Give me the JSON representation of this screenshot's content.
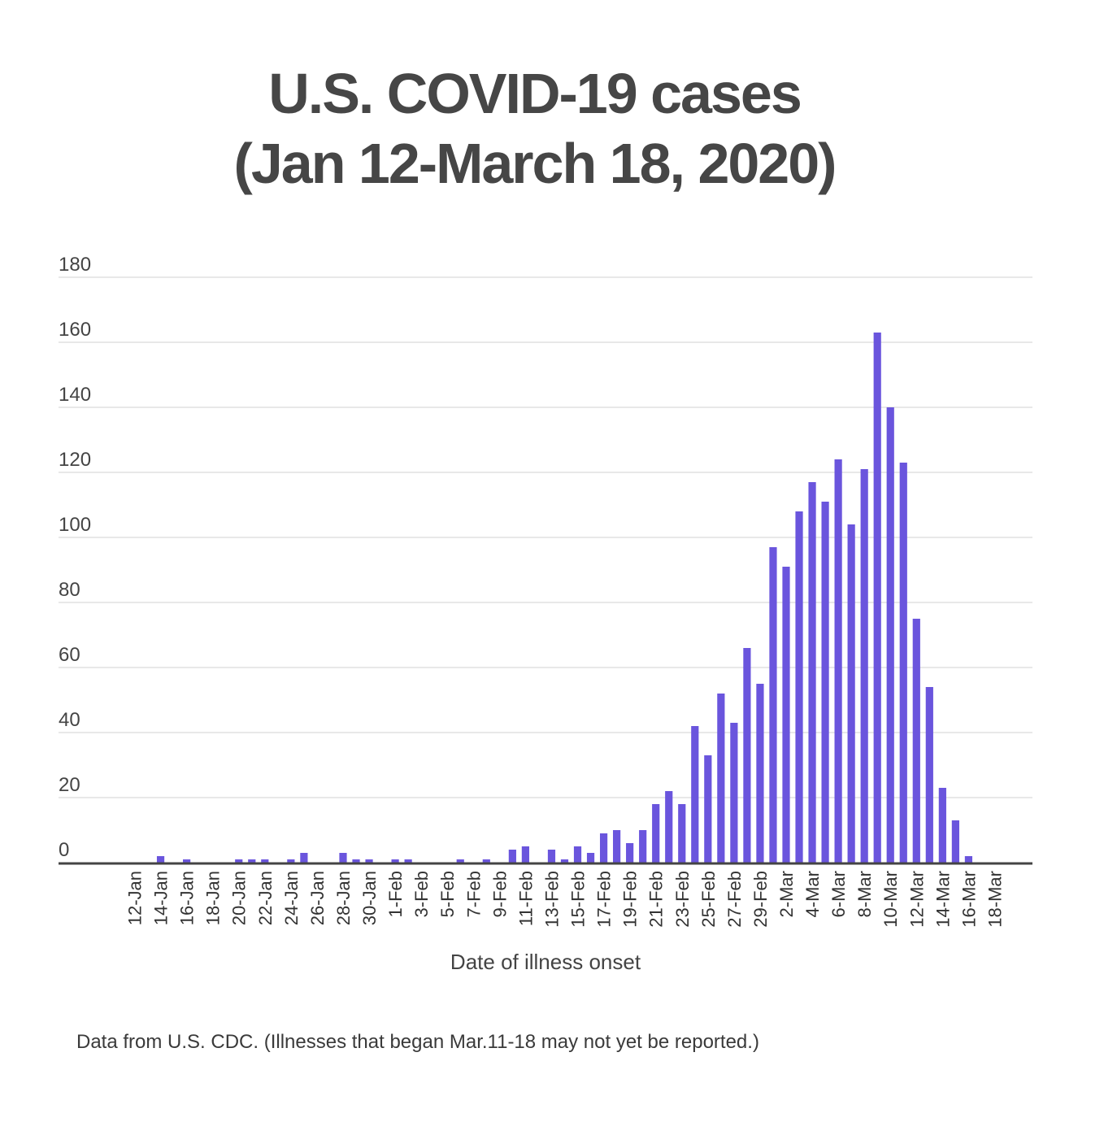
{
  "chart_data": {
    "type": "bar",
    "title_lines": [
      "U.S. COVID-19 cases",
      "(Jan 12-March 18, 2020)"
    ],
    "xlabel": "Date of illness onset",
    "ylabel": "",
    "ylim": [
      0,
      180
    ],
    "yticks": [
      0,
      20,
      40,
      60,
      80,
      100,
      120,
      140,
      160,
      180
    ],
    "grid": true,
    "legend": "none",
    "bar_color": "#6a55dd",
    "categories": [
      "12-Jan",
      "13-Jan",
      "14-Jan",
      "15-Jan",
      "16-Jan",
      "17-Jan",
      "18-Jan",
      "19-Jan",
      "20-Jan",
      "21-Jan",
      "22-Jan",
      "23-Jan",
      "24-Jan",
      "25-Jan",
      "26-Jan",
      "27-Jan",
      "28-Jan",
      "29-Jan",
      "30-Jan",
      "31-Jan",
      "1-Feb",
      "2-Feb",
      "3-Feb",
      "4-Feb",
      "5-Feb",
      "6-Feb",
      "7-Feb",
      "8-Feb",
      "9-Feb",
      "10-Feb",
      "11-Feb",
      "12-Feb",
      "13-Feb",
      "14-Feb",
      "15-Feb",
      "16-Feb",
      "17-Feb",
      "18-Feb",
      "19-Feb",
      "20-Feb",
      "21-Feb",
      "22-Feb",
      "23-Feb",
      "24-Feb",
      "25-Feb",
      "26-Feb",
      "27-Feb",
      "28-Feb",
      "29-Feb",
      "1-Mar",
      "2-Mar",
      "3-Mar",
      "4-Mar",
      "5-Mar",
      "6-Mar",
      "7-Mar",
      "8-Mar",
      "9-Mar",
      "10-Mar",
      "11-Mar",
      "12-Mar",
      "13-Mar",
      "14-Mar",
      "15-Mar",
      "16-Mar",
      "17-Mar",
      "18-Mar"
    ],
    "tick_labels": [
      "12-Jan",
      "14-Jan",
      "16-Jan",
      "18-Jan",
      "20-Jan",
      "22-Jan",
      "24-Jan",
      "26-Jan",
      "28-Jan",
      "30-Jan",
      "1-Feb",
      "3-Feb",
      "5-Feb",
      "7-Feb",
      "9-Feb",
      "11-Feb",
      "13-Feb",
      "15-Feb",
      "17-Feb",
      "19-Feb",
      "21-Feb",
      "23-Feb",
      "25-Feb",
      "27-Feb",
      "29-Feb",
      "2-Mar",
      "4-Mar",
      "6-Mar",
      "8-Mar",
      "10-Mar",
      "12-Mar",
      "14-Mar",
      "16-Mar",
      "18-Mar"
    ],
    "values": [
      0,
      0,
      2,
      0,
      1,
      0,
      0,
      0,
      1,
      1,
      1,
      0,
      1,
      3,
      0,
      0,
      3,
      1,
      1,
      0,
      1,
      1,
      0,
      0,
      0,
      1,
      0,
      1,
      0,
      4,
      5,
      0,
      4,
      1,
      5,
      3,
      9,
      10,
      6,
      10,
      18,
      22,
      18,
      42,
      33,
      52,
      43,
      66,
      55,
      97,
      91,
      108,
      117,
      111,
      124,
      104,
      121,
      163,
      140,
      123,
      75,
      54,
      23,
      13,
      2,
      0,
      0
    ]
  },
  "footer": "Data from U.S. CDC. (Illnesses that began Mar.11-18 may not yet be reported.)"
}
